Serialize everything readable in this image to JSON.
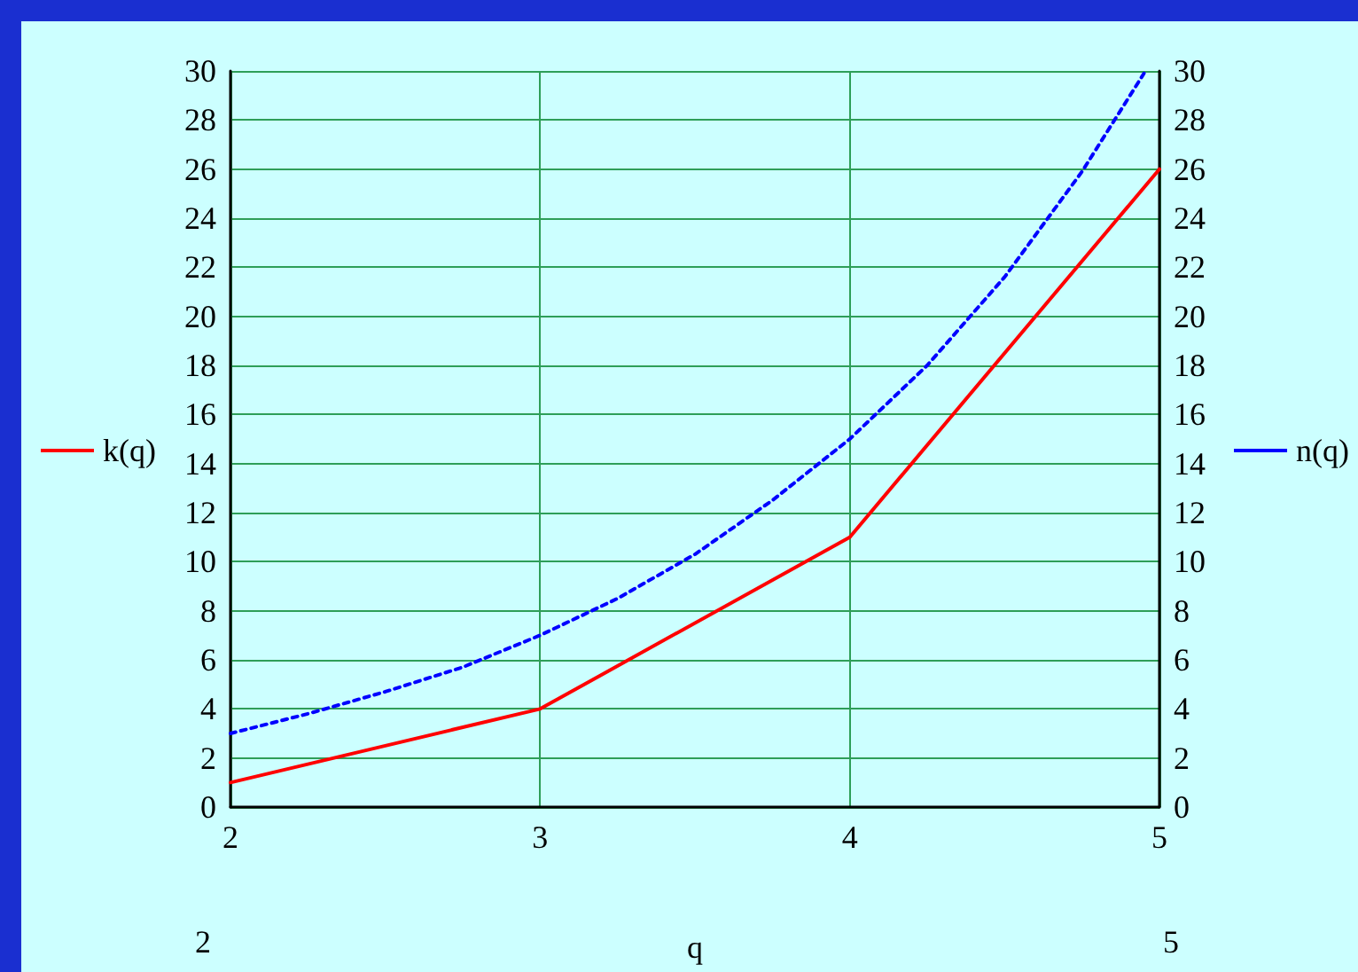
{
  "chart_data": {
    "type": "line",
    "xlabel": "q",
    "x": [
      2,
      3,
      4,
      5
    ],
    "series": [
      {
        "name": "k(q)",
        "color": "#ff0000",
        "values": [
          1,
          4,
          11,
          26
        ],
        "line_style": "solid"
      },
      {
        "name": "n(q)",
        "color": "#0000ff",
        "axis": "y2",
        "line_style": "dotted",
        "x": [
          2,
          2.25,
          2.5,
          2.75,
          3,
          3.25,
          3.5,
          3.75,
          4,
          4.25,
          4.5,
          4.75,
          4.95
        ],
        "values": [
          3,
          3.8,
          4.7,
          5.7,
          7,
          8.5,
          10.3,
          12.5,
          15,
          18,
          21.6,
          25.9,
          29.9
        ]
      }
    ],
    "xlim": [
      2,
      5
    ],
    "xticks": [
      2,
      3,
      4,
      5
    ],
    "ylim": [
      0,
      30
    ],
    "yticks": [
      0,
      2,
      4,
      6,
      8,
      10,
      12,
      14,
      16,
      18,
      20,
      22,
      24,
      26,
      28,
      30
    ],
    "y2lim": [
      0,
      30
    ],
    "y2ticks": [
      0,
      2,
      4,
      6,
      8,
      10,
      12,
      14,
      16,
      18,
      20,
      22,
      24,
      26,
      28,
      30
    ],
    "grid": true,
    "legend": "left",
    "marker": "none",
    "annotations": [
      "2",
      "5"
    ]
  }
}
